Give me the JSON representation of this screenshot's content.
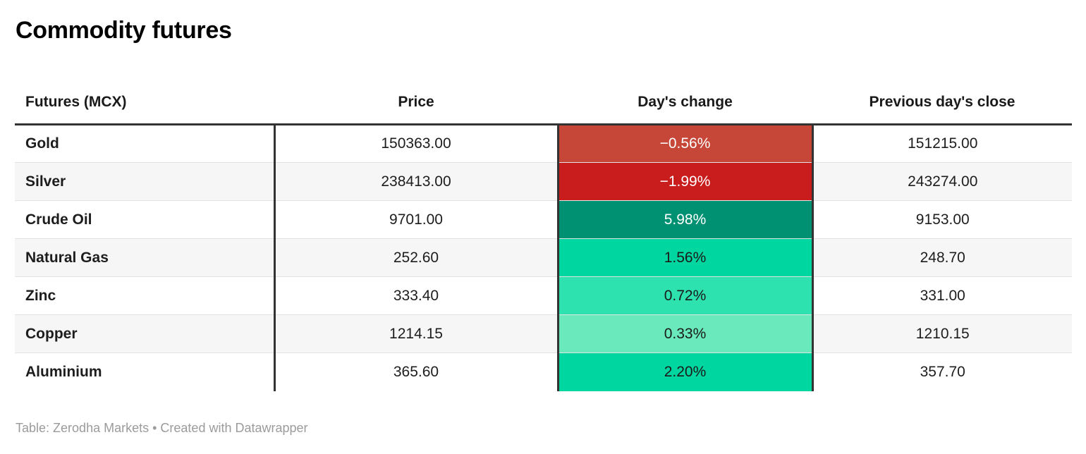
{
  "title": "Commodity futures",
  "table": {
    "columns": [
      "Futures (MCX)",
      "Price",
      "Day's change",
      "Previous day's close"
    ],
    "rows": [
      {
        "name": "Gold",
        "price": "150363.00",
        "change": "−0.56%",
        "prev_close": "151215.00",
        "change_bg": "#c64637",
        "change_fg": "#ffffff"
      },
      {
        "name": "Silver",
        "price": "238413.00",
        "change": "−1.99%",
        "prev_close": "243274.00",
        "change_bg": "#c91c1c",
        "change_fg": "#ffffff"
      },
      {
        "name": "Crude Oil",
        "price": "9701.00",
        "change": "5.98%",
        "prev_close": "9153.00",
        "change_bg": "#009172",
        "change_fg": "#ffffff"
      },
      {
        "name": "Natural Gas",
        "price": "252.60",
        "change": "1.56%",
        "prev_close": "248.70",
        "change_bg": "#00d69f",
        "change_fg": "#1a1a1a"
      },
      {
        "name": "Zinc",
        "price": "333.40",
        "change": "0.72%",
        "prev_close": "331.00",
        "change_bg": "#2de2af",
        "change_fg": "#1a1a1a"
      },
      {
        "name": "Copper",
        "price": "1214.15",
        "change": "0.33%",
        "prev_close": "1210.15",
        "change_bg": "#69e9bc",
        "change_fg": "#1a1a1a"
      },
      {
        "name": "Aluminium",
        "price": "365.60",
        "change": "2.20%",
        "prev_close": "357.70",
        "change_bg": "#00d69f",
        "change_fg": "#1a1a1a"
      }
    ]
  },
  "footer": {
    "prefix": "Table: ",
    "source": "Zerodha Markets",
    "middle": " • Created with ",
    "tool": "Datawrapper"
  },
  "colors": {
    "rule_dark": "#333333",
    "row_alt": "#f6f6f6",
    "row_separator": "#e2e2e2",
    "footer_text": "#9b9b9b",
    "negative_strong": "#c91c1c",
    "negative_soft": "#c64637",
    "positive_dark": "#009172",
    "positive_bright": "#00d69f",
    "positive_mid": "#2de2af",
    "positive_pale": "#69e9bc"
  },
  "chart_data": {
    "type": "table",
    "title": "Commodity futures",
    "columns": [
      "Futures (MCX)",
      "Price",
      "Day's change (%)",
      "Previous day's close"
    ],
    "rows": [
      {
        "futures": "Gold",
        "price": 150363.0,
        "day_change_pct": -0.56,
        "previous_close": 151215.0
      },
      {
        "futures": "Silver",
        "price": 238413.0,
        "day_change_pct": -1.99,
        "previous_close": 243274.0
      },
      {
        "futures": "Crude Oil",
        "price": 9701.0,
        "day_change_pct": 5.98,
        "previous_close": 9153.0
      },
      {
        "futures": "Natural Gas",
        "price": 252.6,
        "day_change_pct": 1.56,
        "previous_close": 248.7
      },
      {
        "futures": "Zinc",
        "price": 333.4,
        "day_change_pct": 0.72,
        "previous_close": 331.0
      },
      {
        "futures": "Copper",
        "price": 1214.15,
        "day_change_pct": 0.33,
        "previous_close": 1210.15
      },
      {
        "futures": "Aluminium",
        "price": 365.6,
        "day_change_pct": 2.2,
        "previous_close": 357.7
      }
    ],
    "heatmap_column": "Day's change (%)",
    "color_rule": "negative = red shades (white text), positive = green shades (dark text); intensity scales with magnitude",
    "source": "Zerodha Markets",
    "created_with": "Datawrapper"
  }
}
